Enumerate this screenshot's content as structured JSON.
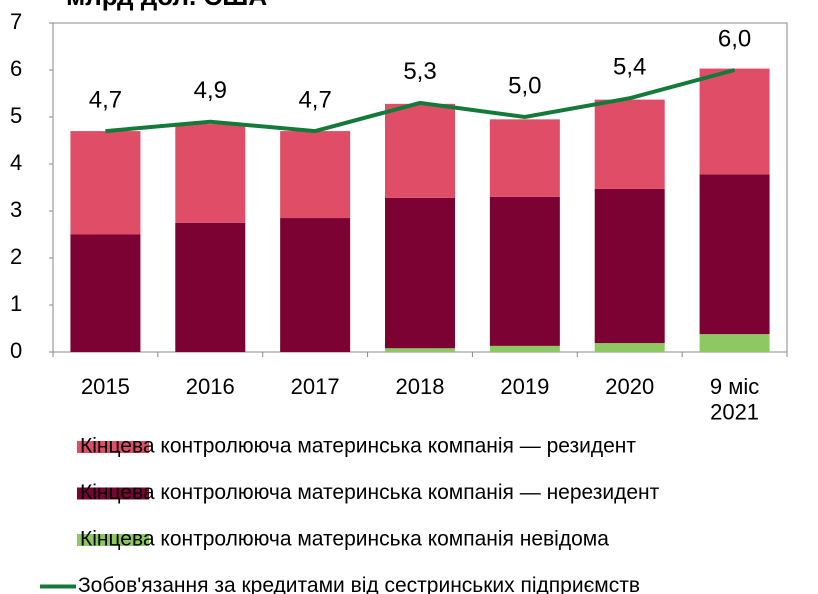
{
  "chart_data": {
    "type": "bar_line",
    "title": "млрд дол. США",
    "categories": [
      "2015",
      "2016",
      "2017",
      "2018",
      "2019",
      "2020",
      "9 міс\n2021"
    ],
    "series": [
      {
        "name": "Кінцева контролююча материнська компанія невідома",
        "color": "#8dc863",
        "values": [
          0,
          0,
          0,
          0.08,
          0.13,
          0.19,
          0.38
        ]
      },
      {
        "name": "Кінцева контролююча материнська компанія — нерезидент",
        "color": "#7b0232",
        "values": [
          2.5,
          2.75,
          2.85,
          3.2,
          3.17,
          3.28,
          3.4
        ]
      },
      {
        "name": "Кінцева контролююча материнська компанія — резидент",
        "color": "#df4d67",
        "values": [
          2.2,
          2.1,
          1.85,
          2.0,
          1.65,
          1.9,
          2.25
        ]
      },
      {
        "name": "Зобов'язання за кредитами від сестринських підприємств",
        "color": "#137a3a",
        "type": "line",
        "values": [
          4.7,
          4.9,
          4.7,
          5.3,
          5.0,
          5.4,
          6.0
        ],
        "value_labels": [
          "4,7",
          "4,9",
          "4,7",
          "5,3",
          "5,0",
          "5,4",
          "6,0"
        ]
      }
    ],
    "legend_order": [
      2,
      1,
      0,
      3
    ],
    "ylim": [
      0,
      7
    ],
    "yticks": [
      0,
      1,
      2,
      3,
      4,
      5,
      6,
      7
    ],
    "grid": false
  }
}
